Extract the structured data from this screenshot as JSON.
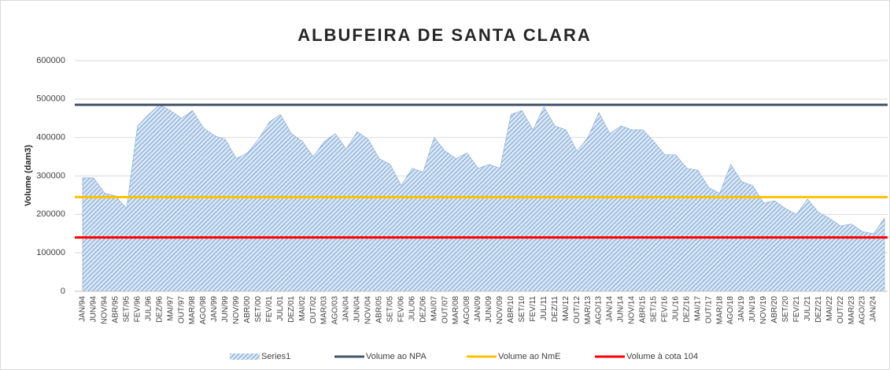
{
  "chart_data": {
    "type": "area",
    "title": "ALBUFEIRA DE SANTA CLARA",
    "y_label": "Volume (dam3)",
    "categories": [
      "JAN/94",
      "JUN/94",
      "NOV/94",
      "ABR/95",
      "SET/95",
      "FEV/96",
      "JUL/96",
      "DEZ/96",
      "MAI/97",
      "OUT/97",
      "MAR/98",
      "AGO/98",
      "JAN/99",
      "JUN/99",
      "NOV/99",
      "ABR/00",
      "SET/00",
      "FEV/01",
      "JUL/01",
      "DEZ/01",
      "MAI/02",
      "OUT/02",
      "MAR/03",
      "AGO/03",
      "JAN/04",
      "JUN/04",
      "NOV/04",
      "ABR/05",
      "SET/05",
      "FEV/06",
      "JUL/06",
      "DEZ/06",
      "MAI/07",
      "OUT/07",
      "MAR/08",
      "AGO/08",
      "JAN/09",
      "JUN/09",
      "NOV/09",
      "ABR/10",
      "SET/10",
      "FEV/11",
      "JUL/11",
      "DEZ/11",
      "MAI/12",
      "OUT/12",
      "MAR/13",
      "AGO/13",
      "JAN/14",
      "JUN/14",
      "NOV/14",
      "ABR/15",
      "SET/15",
      "FEV/16",
      "JUL/16",
      "DEZ/16",
      "MAI/17",
      "OUT/17",
      "MAR/18",
      "AGO/18",
      "JAN/19",
      "JUN/19",
      "NOV/19",
      "ABR/20",
      "SET/20",
      "FEV/21",
      "JUL/21",
      "DEZ/21",
      "MAI/22",
      "OUT/22",
      "MAR/23",
      "AGO/23",
      "JAN/24",
      null
    ],
    "series": [
      {
        "name": "Series1",
        "color": "#7fa8d6",
        "values": [
          295000,
          295000,
          255000,
          248000,
          215000,
          430000,
          460000,
          485000,
          470000,
          450000,
          470000,
          425000,
          405000,
          395000,
          345000,
          360000,
          395000,
          440000,
          460000,
          410000,
          390000,
          350000,
          390000,
          410000,
          370000,
          415000,
          395000,
          345000,
          330000,
          275000,
          320000,
          310000,
          400000,
          365000,
          345000,
          360000,
          320000,
          330000,
          320000,
          460000,
          470000,
          420000,
          480000,
          430000,
          420000,
          365000,
          400000,
          465000,
          410000,
          430000,
          420000,
          420000,
          390000,
          355000,
          355000,
          320000,
          315000,
          270000,
          255000,
          330000,
          285000,
          275000,
          230000,
          235000,
          215000,
          200000,
          240000,
          205000,
          190000,
          170000,
          175000,
          155000,
          150000,
          190000
        ]
      }
    ],
    "lines": [
      {
        "name": "Volume ao NPA",
        "color": "#44546a",
        "value": 485000
      },
      {
        "name": "Volume ao NmE",
        "color": "#ffc000",
        "value": 245000
      },
      {
        "name": "Volume à cota 104",
        "color": "#ff0000",
        "value": 140000
      }
    ],
    "ylim": [
      0,
      600000
    ],
    "yticks": [
      0,
      100000,
      200000,
      300000,
      400000,
      500000,
      600000
    ],
    "grid": true
  }
}
